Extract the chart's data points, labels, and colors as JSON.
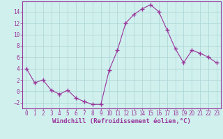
{
  "x": [
    0,
    1,
    2,
    3,
    4,
    5,
    6,
    7,
    8,
    9,
    10,
    11,
    12,
    13,
    14,
    15,
    16,
    17,
    18,
    19,
    20,
    21,
    22,
    23
  ],
  "y": [
    4,
    1.5,
    2,
    0.2,
    -0.5,
    0.2,
    -1.2,
    -1.8,
    -2.3,
    -2.3,
    3.7,
    7.2,
    12,
    13.5,
    14.5,
    15.2,
    14,
    10.8,
    7.5,
    5,
    7.2,
    6.7,
    6,
    5
  ],
  "line_color": "#993399",
  "marker": "+",
  "marker_size": 4,
  "bg_color": "#d0f0ee",
  "grid_color": "#b0d8d8",
  "xlabel": "Windchill (Refroidissement éolien,°C)",
  "xlabel_fontsize": 6.5,
  "tick_fontsize": 5.5,
  "ylim": [
    -3,
    15.8
  ],
  "yticks": [
    -2,
    0,
    2,
    4,
    6,
    8,
    10,
    12,
    14
  ],
  "xlim": [
    -0.5,
    23.5
  ]
}
